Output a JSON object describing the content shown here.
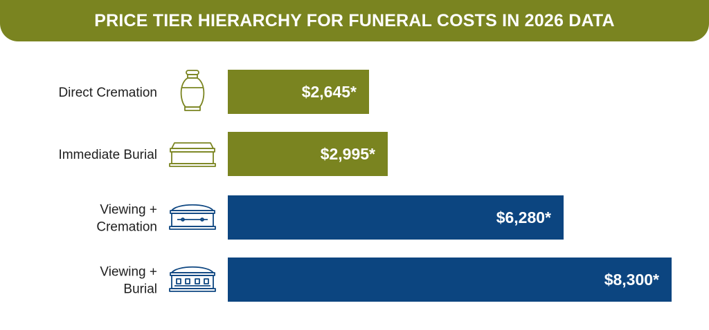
{
  "chart_data": {
    "type": "bar",
    "orientation": "horizontal",
    "title": "PRICE TIER HIERARCHY FOR FUNERAL COSTS IN 2026 DATA",
    "categories": [
      "Direct Cremation",
      "Immediate Burial",
      "Viewing + Cremation",
      "Viewing + Burial"
    ],
    "category_lines": [
      [
        "Direct Cremation"
      ],
      [
        "Immediate Burial"
      ],
      [
        "Viewing +",
        "Cremation"
      ],
      [
        "Viewing +",
        "Burial"
      ]
    ],
    "values": [
      2645,
      2995,
      6280,
      8300
    ],
    "value_labels": [
      "$2,645*",
      "$2,995*",
      "$6,280*",
      "$8,300*"
    ],
    "icons": [
      "urn-icon",
      "simple-casket-icon",
      "casket-icon",
      "ornate-casket-icon"
    ],
    "bar_colors": [
      "#7a8420",
      "#7a8420",
      "#0c4580",
      "#0c4580"
    ],
    "xlim": [
      0,
      8300
    ],
    "grid": false,
    "legend": "none"
  }
}
